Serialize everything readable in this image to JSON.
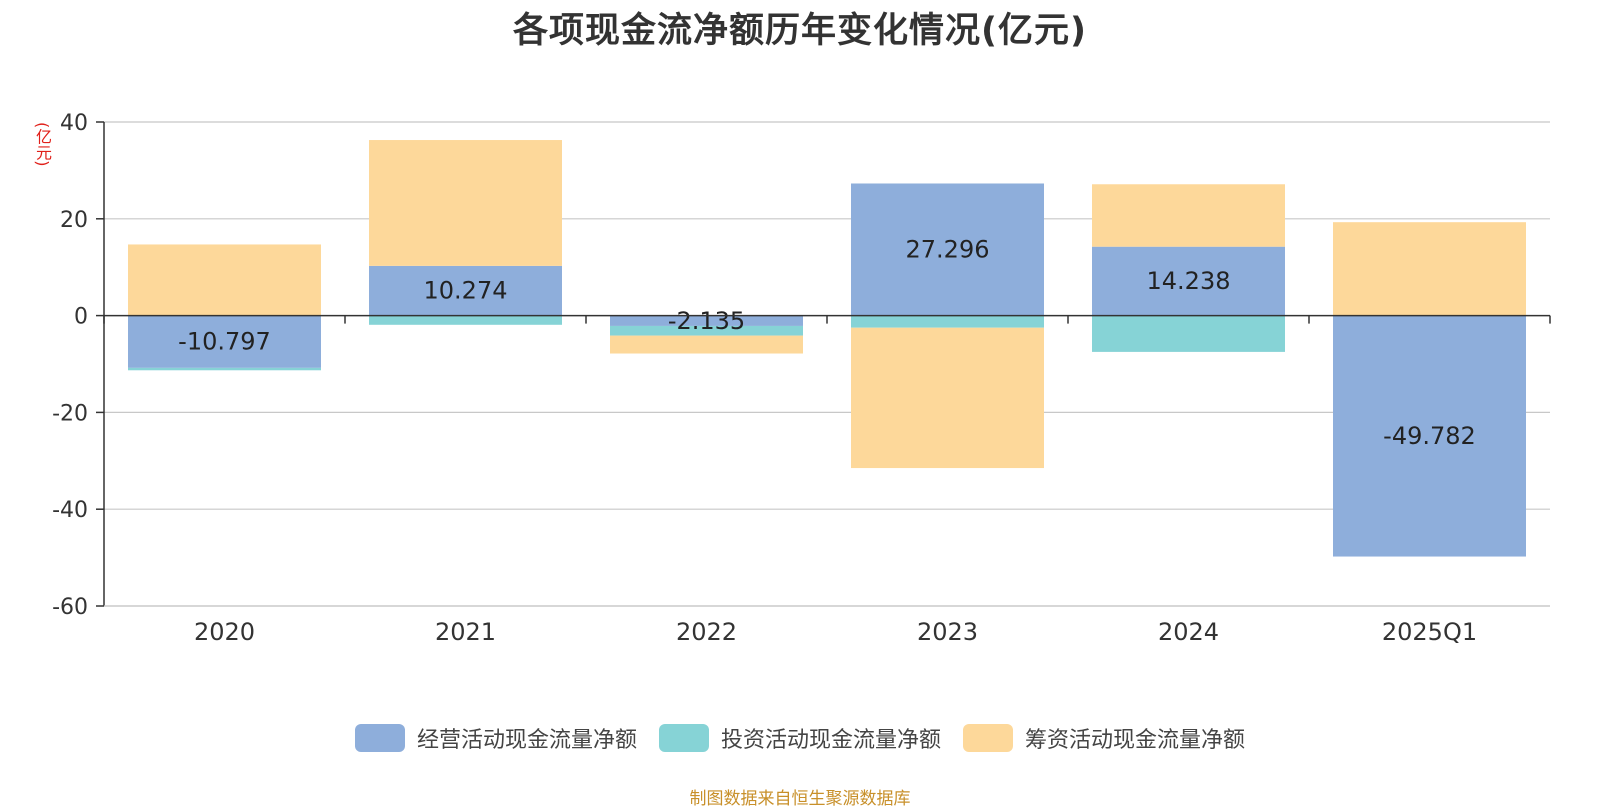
{
  "chart_data": {
    "type": "bar",
    "stacked": true,
    "title": "各项现金流净额历年变化情况(亿元)",
    "ylabel": "(亿元)",
    "categories": [
      "2020",
      "2021",
      "2022",
      "2023",
      "2024",
      "2025Q1"
    ],
    "ylim": [
      -60,
      40
    ],
    "yticks": [
      40,
      20,
      0,
      -20,
      -40,
      -60
    ],
    "grid": true,
    "legend_position": "bottom",
    "series": [
      {
        "name": "经营活动现金流量净额",
        "color": "#8eaedb",
        "values": [
          -10.797,
          10.274,
          -2.135,
          27.296,
          14.238,
          -49.782
        ],
        "labels": [
          "-10.797",
          "10.274",
          "-2.135",
          "27.296",
          "14.238",
          "-49.782"
        ]
      },
      {
        "name": "投资活动现金流量净额",
        "color": "#86d3d6",
        "values": [
          -0.5,
          -1.9,
          -2.0,
          -2.5,
          -7.5,
          0
        ]
      },
      {
        "name": "筹资活动现金流量净额",
        "color": "#fdd89a",
        "values": [
          14.7,
          26.0,
          -3.7,
          -29.0,
          12.9,
          19.3
        ]
      }
    ]
  },
  "source": "制图数据来自恒生聚源数据库"
}
